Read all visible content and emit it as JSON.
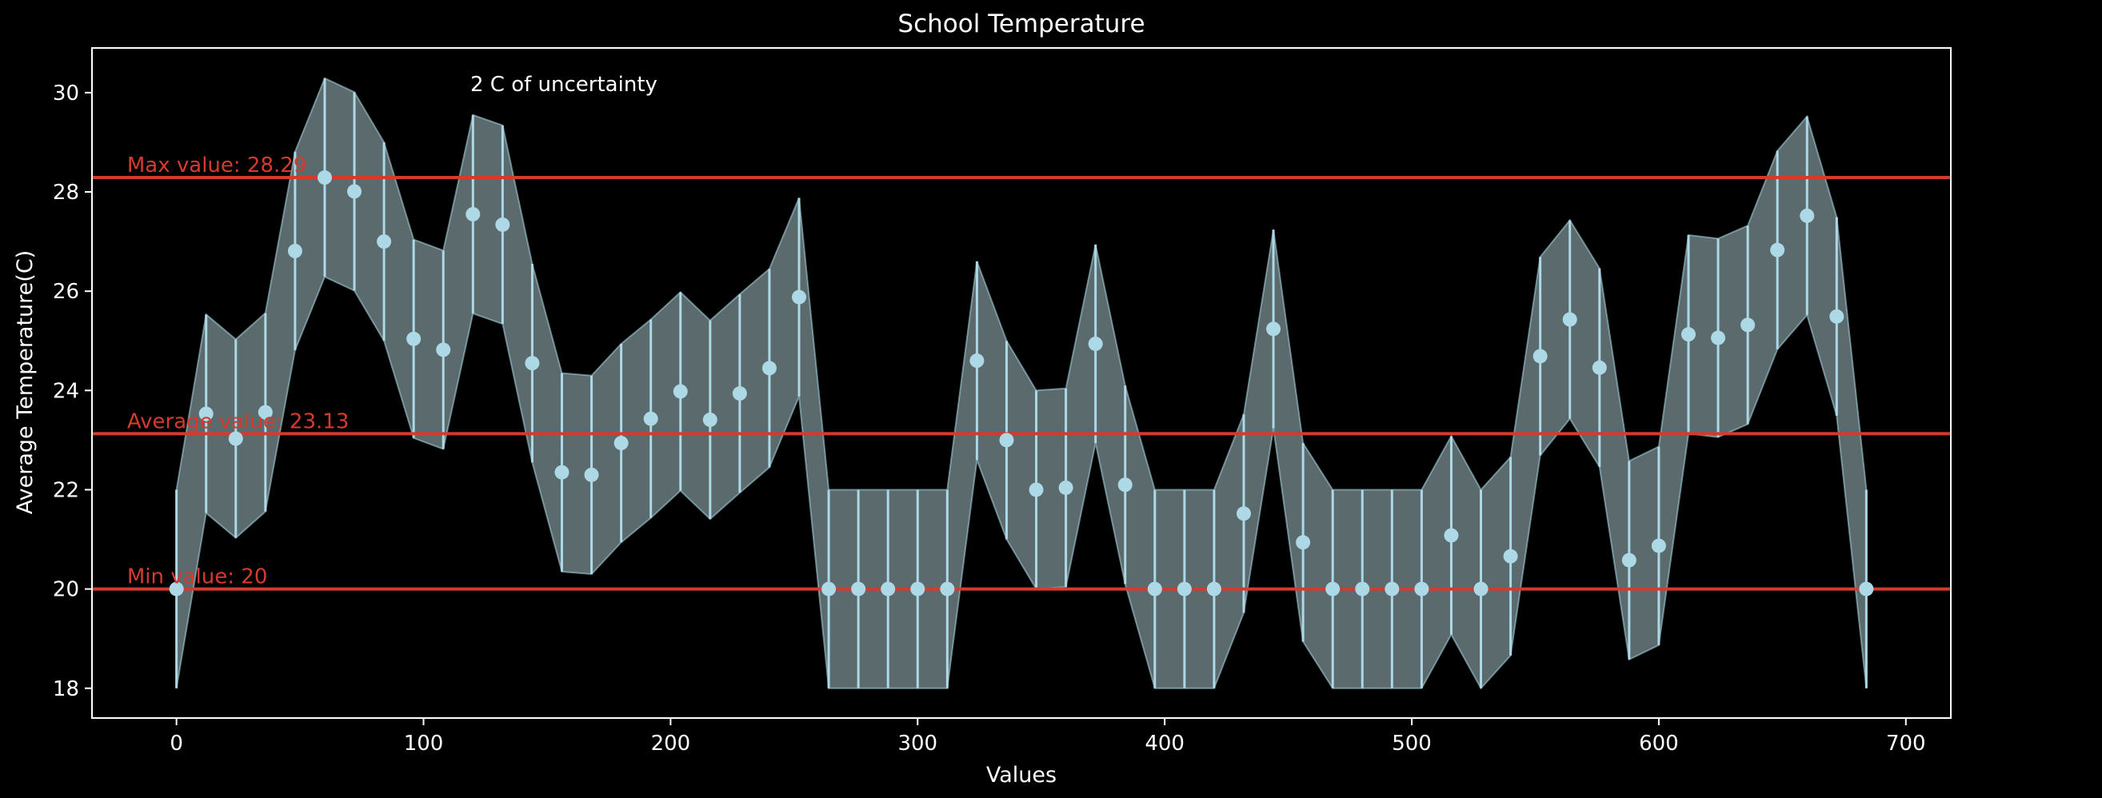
{
  "chart_data": {
    "type": "scatter",
    "title": "School Temperature",
    "xlabel": "Values",
    "ylabel": "Average Temperature(C)",
    "xlim": [
      -34.2,
      718.2
    ],
    "ylim": [
      17.4,
      30.9
    ],
    "xticks": [
      0,
      100,
      200,
      300,
      400,
      500,
      600,
      700
    ],
    "yticks": [
      18,
      20,
      22,
      24,
      26,
      28,
      30
    ],
    "grid": false,
    "background": "#000000",
    "colors": {
      "points": "#add8e6",
      "band_fill": "#5f7073",
      "hlines": "#d63a2f",
      "text": "#ffffff"
    },
    "annotation": "2 C of uncertainty",
    "uncertainty": 2,
    "hlines": [
      {
        "label": "Max value: 28.29",
        "value": 28.29
      },
      {
        "label": "Average value: 23.13",
        "value": 23.13
      },
      {
        "label": "Min value: 20",
        "value": 20
      }
    ],
    "x": [
      0,
      12,
      24,
      36,
      48,
      60,
      72,
      84,
      96,
      108,
      120,
      132,
      144,
      156,
      168,
      180,
      192,
      204,
      216,
      228,
      240,
      252,
      264,
      276,
      288,
      300,
      312,
      324,
      336,
      348,
      360,
      372,
      384,
      396,
      408,
      420,
      432,
      444,
      456,
      468,
      480,
      492,
      504,
      516,
      528,
      540,
      552,
      564,
      576,
      588,
      600,
      612,
      624,
      636,
      648,
      660,
      672,
      684
    ],
    "values": [
      20.0,
      23.53,
      23.03,
      23.56,
      26.81,
      28.29,
      28.01,
      27.0,
      25.04,
      24.82,
      27.55,
      27.34,
      24.55,
      22.35,
      22.3,
      22.94,
      23.43,
      23.98,
      23.41,
      23.94,
      24.45,
      25.88,
      20.0,
      20.0,
      20.0,
      20.0,
      20.0,
      24.6,
      23.0,
      22.0,
      22.04,
      24.94,
      22.1,
      20.0,
      20.0,
      20.0,
      21.52,
      25.24,
      20.94,
      20.0,
      20.0,
      20.0,
      20.0,
      21.08,
      20.0,
      20.66,
      24.69,
      25.43,
      24.46,
      20.58,
      20.87,
      25.13,
      25.06,
      25.32,
      26.83,
      27.52,
      25.49,
      20.0
    ]
  }
}
